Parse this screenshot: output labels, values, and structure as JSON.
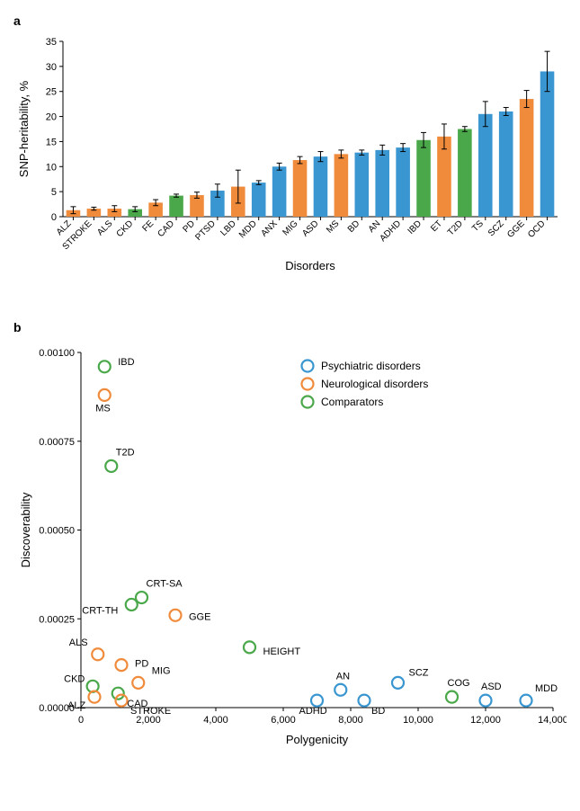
{
  "panel_a": {
    "label": "a",
    "type": "bar",
    "ylabel": "SNP-heritability, %",
    "xlabel": "Disorders",
    "ylim": [
      0,
      35
    ],
    "ytick_step": 5,
    "title_fontsize": 13,
    "tick_fontsize": 11,
    "cat_fontsize": 10,
    "background_color": "#ffffff",
    "axis_color": "#000000",
    "bar_width": 0.68,
    "colors": {
      "psychiatric": "#3a96d0",
      "neurological": "#f08b3c",
      "comparator": "#4aa84a"
    },
    "data": [
      {
        "label": "ALZ",
        "value": 1.3,
        "err": 0.7,
        "group": "neurological"
      },
      {
        "label": "STROKE",
        "value": 1.6,
        "err": 0.3,
        "group": "neurological"
      },
      {
        "label": "ALS",
        "value": 1.6,
        "err": 0.6,
        "group": "neurological"
      },
      {
        "label": "CKD",
        "value": 1.5,
        "err": 0.5,
        "group": "comparator"
      },
      {
        "label": "FE",
        "value": 2.8,
        "err": 0.6,
        "group": "neurological"
      },
      {
        "label": "CAD",
        "value": 4.2,
        "err": 0.3,
        "group": "comparator"
      },
      {
        "label": "PD",
        "value": 4.3,
        "err": 0.6,
        "group": "neurological"
      },
      {
        "label": "PTSD",
        "value": 5.2,
        "err": 1.3,
        "group": "psychiatric"
      },
      {
        "label": "LBD",
        "value": 6.0,
        "err": 3.3,
        "group": "neurological"
      },
      {
        "label": "MDD",
        "value": 6.8,
        "err": 0.4,
        "group": "psychiatric"
      },
      {
        "label": "ANX",
        "value": 10.0,
        "err": 0.7,
        "group": "psychiatric"
      },
      {
        "label": "MIG",
        "value": 11.3,
        "err": 0.7,
        "group": "neurological"
      },
      {
        "label": "ASD",
        "value": 12.0,
        "err": 1.0,
        "group": "psychiatric"
      },
      {
        "label": "MS",
        "value": 12.5,
        "err": 0.8,
        "group": "neurological"
      },
      {
        "label": "BD",
        "value": 12.8,
        "err": 0.5,
        "group": "psychiatric"
      },
      {
        "label": "AN",
        "value": 13.3,
        "err": 1.0,
        "group": "psychiatric"
      },
      {
        "label": "ADHD",
        "value": 13.8,
        "err": 0.8,
        "group": "psychiatric"
      },
      {
        "label": "IBD",
        "value": 15.3,
        "err": 1.5,
        "group": "comparator"
      },
      {
        "label": "ET",
        "value": 16.0,
        "err": 2.5,
        "group": "neurological"
      },
      {
        "label": "T2D",
        "value": 17.5,
        "err": 0.5,
        "group": "comparator"
      },
      {
        "label": "TS",
        "value": 20.5,
        "err": 2.5,
        "group": "psychiatric"
      },
      {
        "label": "SCZ",
        "value": 21.0,
        "err": 0.8,
        "group": "psychiatric"
      },
      {
        "label": "GGE",
        "value": 23.5,
        "err": 1.7,
        "group": "neurological"
      },
      {
        "label": "OCD",
        "value": 29.0,
        "err": 4.0,
        "group": "psychiatric"
      }
    ]
  },
  "panel_b": {
    "label": "b",
    "type": "scatter",
    "ylabel": "Discoverability",
    "xlabel": "Polygenicity",
    "xlim": [
      0,
      14000
    ],
    "xtick_step": 2000,
    "ylim": [
      0,
      0.001
    ],
    "ytick_step": 0.00025,
    "marker_radius": 6.5,
    "marker_stroke": 2.2,
    "label_fontsize": 11,
    "background_color": "#ffffff",
    "axis_color": "#000000",
    "colors": {
      "psychiatric": "#3a96d0",
      "neurological": "#f08b3c",
      "comparator": "#4aa84a"
    },
    "legend": [
      {
        "label": "Psychiatric disorders",
        "group": "psychiatric"
      },
      {
        "label": "Neurological disorders",
        "group": "neurological"
      },
      {
        "label": "Comparators",
        "group": "comparator"
      }
    ],
    "data": [
      {
        "label": "IBD",
        "x": 700,
        "y": 0.00096,
        "group": "comparator",
        "lox": 15,
        "loy": -2
      },
      {
        "label": "MS",
        "x": 700,
        "y": 0.00088,
        "group": "neurological",
        "lox": -10,
        "loy": 18
      },
      {
        "label": "T2D",
        "x": 900,
        "y": 0.00068,
        "group": "comparator",
        "lox": 5,
        "loy": -12
      },
      {
        "label": "CRT-SA",
        "x": 1800,
        "y": 0.00031,
        "group": "comparator",
        "lox": 5,
        "loy": -12
      },
      {
        "label": "CRT-TH",
        "x": 1500,
        "y": 0.00029,
        "group": "comparator",
        "lox": -55,
        "loy": 10
      },
      {
        "label": "GGE",
        "x": 2800,
        "y": 0.00026,
        "group": "neurological",
        "lox": 15,
        "loy": 5
      },
      {
        "label": "ALS",
        "x": 500,
        "y": 0.00015,
        "group": "neurological",
        "lox": -32,
        "loy": -10
      },
      {
        "label": "PD",
        "x": 1200,
        "y": 0.00012,
        "group": "neurological",
        "lox": 15,
        "loy": 2
      },
      {
        "label": "HEIGHT",
        "x": 5000,
        "y": 0.00017,
        "group": "comparator",
        "lox": 15,
        "loy": 8
      },
      {
        "label": "CKD",
        "x": 350,
        "y": 6e-05,
        "group": "comparator",
        "lox": -32,
        "loy": -5
      },
      {
        "label": "MIG",
        "x": 1700,
        "y": 7e-05,
        "group": "neurological",
        "lox": 15,
        "loy": 0
      },
      {
        "label": "CAD",
        "x": 1100,
        "y": 4e-05,
        "group": "comparator",
        "lox": 10,
        "loy": 15
      },
      {
        "label": "ALZ",
        "x": 400,
        "y": 3e-05,
        "group": "neurological",
        "lox": -30,
        "loy": 13
      },
      {
        "label": "STROKE",
        "x": 1200,
        "y": 2e-05,
        "group": "neurological",
        "lox": 10,
        "loy": 15
      },
      {
        "label": "ADHD",
        "x": 7000,
        "y": 2e-05,
        "group": "psychiatric",
        "lox": -20,
        "loy": 15
      },
      {
        "label": "AN",
        "x": 7700,
        "y": 5e-05,
        "group": "psychiatric",
        "lox": -5,
        "loy": -12
      },
      {
        "label": "BD",
        "x": 8400,
        "y": 2e-05,
        "group": "psychiatric",
        "lox": 8,
        "loy": 15
      },
      {
        "label": "SCZ",
        "x": 9400,
        "y": 7e-05,
        "group": "psychiatric",
        "lox": 12,
        "loy": -8
      },
      {
        "label": "COG",
        "x": 11000,
        "y": 3e-05,
        "group": "comparator",
        "lox": -5,
        "loy": -12
      },
      {
        "label": "ASD",
        "x": 12000,
        "y": 2e-05,
        "group": "psychiatric",
        "lox": -5,
        "loy": -12
      },
      {
        "label": "MDD",
        "x": 13200,
        "y": 2e-05,
        "group": "psychiatric",
        "lox": 10,
        "loy": -10
      }
    ]
  }
}
